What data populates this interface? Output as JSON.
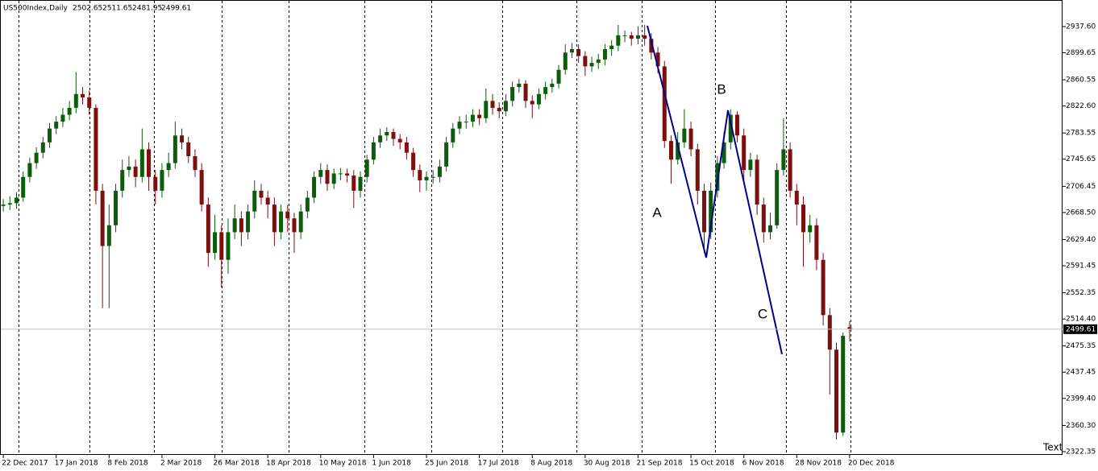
{
  "chart_data": {
    "type": "candlestick",
    "title": "US500Index,Daily",
    "corner_label": "Text",
    "annotations": [
      "A",
      "B",
      "C"
    ],
    "up_color": "#0b5d0b",
    "down_color": "#7a1010",
    "price_line_color": "#c0c0c0",
    "xlim": [
      -0.5,
      160.2
    ],
    "ylim": [
      2317.69,
      2976.05
    ],
    "xticks": [
      {
        "value": 0,
        "label": "22 Dec 2017"
      },
      {
        "value": 8,
        "label": "17 Jan 2018"
      },
      {
        "value": 16,
        "label": "8 Feb 2018"
      },
      {
        "value": 24,
        "label": "2 Mar 2018"
      },
      {
        "value": 32,
        "label": "26 Mar 2018"
      },
      {
        "value": 40,
        "label": "18 Apr 2018"
      },
      {
        "value": 48,
        "label": "10 May 2018"
      },
      {
        "value": 56,
        "label": "1 Jun 2018"
      },
      {
        "value": 64,
        "label": "25 Jun 2018"
      },
      {
        "value": 72,
        "label": "17 Jul 2018"
      },
      {
        "value": 80,
        "label": "8 Aug 2018"
      },
      {
        "value": 88,
        "label": "30 Aug 2018"
      },
      {
        "value": 96,
        "label": "21 Sep 2018"
      },
      {
        "value": 104,
        "label": "15 Oct 2018"
      },
      {
        "value": 112,
        "label": "6 Nov 2018"
      },
      {
        "value": 120,
        "label": "28 Nov 2018"
      },
      {
        "value": 128,
        "label": "20 Dec 2018"
      }
    ],
    "yticks": [
      {
        "value": 2937.6,
        "label": "2937.60"
      },
      {
        "value": 2899.65,
        "label": "2899.65"
      },
      {
        "value": 2860.55,
        "label": "2860.55"
      },
      {
        "value": 2822.6,
        "label": "2822.60"
      },
      {
        "value": 2783.55,
        "label": "2783.55"
      },
      {
        "value": 2745.65,
        "label": "2745.65"
      },
      {
        "value": 2706.45,
        "label": "2706.45"
      },
      {
        "value": 2668.5,
        "label": "2668.50"
      },
      {
        "value": 2629.4,
        "label": "2629.40"
      },
      {
        "value": 2591.45,
        "label": "2591.45"
      },
      {
        "value": 2552.35,
        "label": "2552.35"
      },
      {
        "value": 2514.4,
        "label": "2514.40"
      },
      {
        "value": 2475.35,
        "label": "2475.35"
      },
      {
        "value": 2437.45,
        "label": "2437.45"
      },
      {
        "value": 2399.4,
        "label": "2399.40"
      },
      {
        "value": 2360.3,
        "label": "2360.30"
      },
      {
        "value": 2322.35,
        "label": "2322.35"
      }
    ],
    "open": [
      2678,
      2680,
      2682,
      2690,
      2720,
      2740,
      2755,
      2770,
      2790,
      2800,
      2810,
      2820,
      2840,
      2835,
      2820,
      2700,
      2620,
      2650,
      2700,
      2730,
      2735,
      2720,
      2760,
      2720,
      2700,
      2730,
      2740,
      2780,
      2770,
      2750,
      2730,
      2680,
      2610,
      2640,
      2600,
      2640,
      2660,
      2640,
      2670,
      2700,
      2690,
      2680,
      2640,
      2670,
      2660,
      2640,
      2670,
      2690,
      2720,
      2730,
      2710,
      2725,
      2725,
      2722,
      2700,
      2720,
      2745,
      2770,
      2780,
      2785,
      2775,
      2770,
      2755,
      2730,
      2715,
      2720,
      2720,
      2735,
      2770,
      2790,
      2800,
      2800,
      2810,
      2805,
      2830,
      2820,
      2815,
      2830,
      2850,
      2855,
      2830,
      2825,
      2840,
      2850,
      2855,
      2875,
      2900,
      2905,
      2895,
      2880,
      2885,
      2890,
      2905,
      2910,
      2925,
      2925,
      2920,
      2925,
      2920,
      2900,
      2880,
      2772,
      2745,
      2770,
      2790,
      2760,
      2700,
      2640,
      2700,
      2740,
      2770,
      2810,
      2780,
      2730,
      2745,
      2680,
      2640,
      2650,
      2730,
      2760,
      2700,
      2680,
      2640,
      2650,
      2600,
      2520,
      2470,
      2350,
      2502.65
    ],
    "high": [
      2688,
      2692,
      2698,
      2728,
      2748,
      2763,
      2778,
      2798,
      2808,
      2820,
      2830,
      2872,
      2850,
      2845,
      2825,
      2710,
      2680,
      2710,
      2745,
      2750,
      2745,
      2790,
      2770,
      2730,
      2740,
      2755,
      2800,
      2790,
      2778,
      2760,
      2740,
      2690,
      2665,
      2650,
      2660,
      2680,
      2670,
      2680,
      2715,
      2710,
      2700,
      2690,
      2680,
      2680,
      2668,
      2680,
      2700,
      2728,
      2740,
      2738,
      2732,
      2733,
      2732,
      2730,
      2728,
      2752,
      2778,
      2790,
      2792,
      2790,
      2782,
      2778,
      2762,
      2738,
      2728,
      2730,
      2745,
      2778,
      2798,
      2808,
      2810,
      2818,
      2818,
      2848,
      2840,
      2828,
      2840,
      2858,
      2862,
      2860,
      2838,
      2848,
      2858,
      2862,
      2882,
      2912,
      2914,
      2912,
      2902,
      2894,
      2898,
      2912,
      2918,
      2940,
      2932,
      2930,
      2938,
      2940,
      2928,
      2908,
      2888,
      2780,
      2785,
      2818,
      2800,
      2768,
      2710,
      2712,
      2750,
      2785,
      2818,
      2815,
      2790,
      2755,
      2752,
      2690,
      2668,
      2740,
      2805,
      2770,
      2710,
      2692,
      2665,
      2660,
      2610,
      2530,
      2480,
      2495,
      2511.65
    ],
    "low": [
      2670,
      2672,
      2674,
      2684,
      2712,
      2732,
      2747,
      2762,
      2782,
      2792,
      2802,
      2812,
      2825,
      2810,
      2680,
      2530,
      2530,
      2640,
      2690,
      2720,
      2705,
      2712,
      2700,
      2680,
      2690,
      2720,
      2732,
      2760,
      2740,
      2720,
      2670,
      2590,
      2600,
      2560,
      2580,
      2630,
      2620,
      2630,
      2660,
      2680,
      2660,
      2620,
      2630,
      2640,
      2610,
      2630,
      2660,
      2682,
      2710,
      2700,
      2702,
      2715,
      2712,
      2675,
      2690,
      2712,
      2738,
      2762,
      2772,
      2765,
      2760,
      2745,
      2720,
      2698,
      2700,
      2710,
      2712,
      2728,
      2762,
      2782,
      2790,
      2792,
      2795,
      2798,
      2810,
      2805,
      2808,
      2822,
      2842,
      2820,
      2805,
      2818,
      2832,
      2842,
      2848,
      2868,
      2892,
      2885,
      2866,
      2872,
      2876,
      2882,
      2895,
      2902,
      2915,
      2910,
      2912,
      2910,
      2890,
      2870,
      2762,
      2710,
      2738,
      2762,
      2750,
      2680,
      2610,
      2630,
      2690,
      2732,
      2760,
      2770,
      2715,
      2720,
      2665,
      2625,
      2630,
      2645,
      2722,
      2690,
      2650,
      2590,
      2625,
      2585,
      2505,
      2405,
      2340,
      2345,
      2481.95
    ],
    "close": [
      2680,
      2682,
      2690,
      2720,
      2740,
      2755,
      2770,
      2790,
      2800,
      2810,
      2820,
      2840,
      2835,
      2820,
      2700,
      2620,
      2650,
      2700,
      2730,
      2735,
      2720,
      2760,
      2720,
      2700,
      2730,
      2740,
      2780,
      2770,
      2750,
      2730,
      2680,
      2610,
      2640,
      2600,
      2640,
      2660,
      2640,
      2670,
      2700,
      2690,
      2680,
      2640,
      2670,
      2660,
      2640,
      2670,
      2690,
      2720,
      2730,
      2710,
      2725,
      2725,
      2722,
      2700,
      2720,
      2745,
      2770,
      2780,
      2785,
      2775,
      2770,
      2755,
      2730,
      2715,
      2720,
      2720,
      2735,
      2770,
      2790,
      2800,
      2800,
      2810,
      2805,
      2830,
      2820,
      2815,
      2830,
      2850,
      2855,
      2830,
      2825,
      2840,
      2850,
      2855,
      2875,
      2900,
      2905,
      2895,
      2880,
      2885,
      2890,
      2905,
      2910,
      2925,
      2925,
      2920,
      2925,
      2920,
      2900,
      2880,
      2772,
      2745,
      2770,
      2790,
      2760,
      2700,
      2640,
      2700,
      2740,
      2770,
      2810,
      2780,
      2730,
      2745,
      2680,
      2640,
      2650,
      2730,
      2760,
      2700,
      2680,
      2640,
      2650,
      2600,
      2520,
      2470,
      2350,
      2490,
      2499.61
    ]
  }
}
